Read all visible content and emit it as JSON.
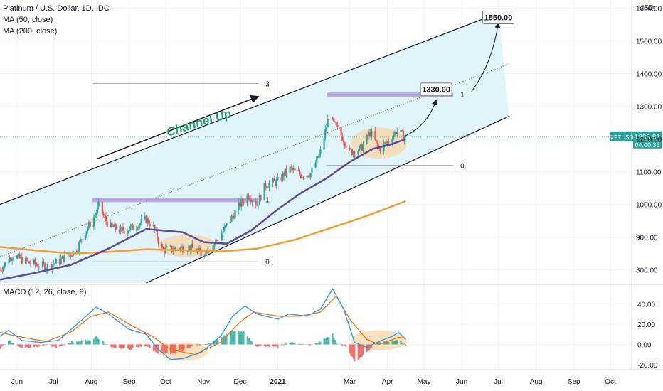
{
  "legend": {
    "symbol_line": "Platinum / U.S. Dollar, 1D, IDC",
    "ma50": "MA (50, close)",
    "ma200": "MA (200, close)",
    "macd": "MACD (12, 26, close, 9)"
  },
  "currency": "USD",
  "price_tag": {
    "symbol": "XPTUSD",
    "price": "1205.91",
    "countdown": "04:00:33"
  },
  "callouts": [
    {
      "text": "1550.00",
      "at": "2021-07-01"
    },
    {
      "text": "1330.00",
      "at": "2021-05-11"
    }
  ],
  "annotation": "Channel Up",
  "colors": {
    "up": "#26a69a",
    "down": "#ef5350",
    "ma50": "#5b4a9b",
    "ma200": "#f39c33",
    "channel_fill": "#dff3fb",
    "zone": "#b39ddb",
    "ellipse": "#f7d7a8",
    "macd_line": "#2196f3",
    "signal_line": "#ff6d00",
    "price_tag": "#26a69a"
  },
  "chart_data": [
    {
      "type": "candlestick",
      "title": "Platinum / U.S. Dollar, 1D, IDC",
      "x_ticks": [
        "Jun",
        "Jul",
        "Aug",
        "Sep",
        "Oct",
        "Nov",
        "Dec",
        "2021",
        "Mar",
        "Apr",
        "May",
        "Jun",
        "Jul",
        "Aug",
        "Sep",
        "Oct"
      ],
      "y_ticks": [
        800,
        900,
        1000,
        1100,
        1200,
        1300,
        1400,
        1500,
        1600
      ],
      "ylim": [
        760,
        1625
      ],
      "close_path": [
        [
          "2020-05-18",
          800
        ],
        [
          "2020-05-28",
          845
        ],
        [
          "2020-06-10",
          822
        ],
        [
          "2020-06-25",
          810
        ],
        [
          "2020-07-05",
          825
        ],
        [
          "2020-07-20",
          862
        ],
        [
          "2020-07-25",
          905
        ],
        [
          "2020-08-03",
          960
        ],
        [
          "2020-08-07",
          995
        ],
        [
          "2020-08-15",
          935
        ],
        [
          "2020-08-25",
          920
        ],
        [
          "2020-09-05",
          930
        ],
        [
          "2020-09-15",
          955
        ],
        [
          "2020-09-21",
          930
        ],
        [
          "2020-09-28",
          860
        ],
        [
          "2020-10-10",
          865
        ],
        [
          "2020-10-20",
          870
        ],
        [
          "2020-10-30",
          850
        ],
        [
          "2020-11-10",
          880
        ],
        [
          "2020-11-20",
          935
        ],
        [
          "2020-12-01",
          1000
        ],
        [
          "2020-12-08",
          1030
        ],
        [
          "2020-12-15",
          1000
        ],
        [
          "2020-12-22",
          1060
        ],
        [
          "2021-01-01",
          1070
        ],
        [
          "2021-01-10",
          1110
        ],
        [
          "2021-01-20",
          1090
        ],
        [
          "2021-01-28",
          1095
        ],
        [
          "2021-02-05",
          1160
        ],
        [
          "2021-02-12",
          1270
        ],
        [
          "2021-02-17",
          1240
        ],
        [
          "2021-02-24",
          1200
        ],
        [
          "2021-03-01",
          1160
        ],
        [
          "2021-03-10",
          1170
        ],
        [
          "2021-03-18",
          1220
        ],
        [
          "2021-03-25",
          1170
        ],
        [
          "2021-04-01",
          1190
        ],
        [
          "2021-04-08",
          1225
        ],
        [
          "2021-04-16",
          1205
        ]
      ],
      "ma50": [
        [
          "2020-05-18",
          770
        ],
        [
          "2020-06-15",
          790
        ],
        [
          "2020-07-15",
          815
        ],
        [
          "2020-08-15",
          865
        ],
        [
          "2020-09-15",
          925
        ],
        [
          "2020-10-15",
          915
        ],
        [
          "2020-11-01",
          885
        ],
        [
          "2020-11-20",
          880
        ],
        [
          "2020-12-10",
          920
        ],
        [
          "2021-01-01",
          985
        ],
        [
          "2021-01-20",
          1035
        ],
        [
          "2021-02-10",
          1080
        ],
        [
          "2021-03-01",
          1130
        ],
        [
          "2021-03-20",
          1170
        ],
        [
          "2021-04-05",
          1185
        ],
        [
          "2021-04-16",
          1200
        ]
      ],
      "ma200": [
        [
          "2020-05-18",
          870
        ],
        [
          "2020-06-15",
          860
        ],
        [
          "2020-07-15",
          850
        ],
        [
          "2020-08-15",
          855
        ],
        [
          "2020-09-15",
          863
        ],
        [
          "2020-10-15",
          860
        ],
        [
          "2020-11-15",
          856
        ],
        [
          "2020-12-15",
          865
        ],
        [
          "2021-01-15",
          892
        ],
        [
          "2021-02-15",
          930
        ],
        [
          "2021-03-15",
          965
        ],
        [
          "2021-04-16",
          1010
        ]
      ],
      "channel": {
        "upper": [
          [
            "2020-05-18",
            1000
          ],
          [
            "2021-07-01",
            1585
          ]
        ],
        "middle": [
          [
            "2020-05-18",
            840
          ],
          [
            "2021-07-10",
            1430
          ]
        ],
        "lower": [
          [
            "2020-09-15",
            760
          ],
          [
            "2021-07-10",
            1270
          ]
        ]
      },
      "zones": [
        {
          "from": "2020-08-02",
          "to": "2020-12-16",
          "low": 1012,
          "high": 1020,
          "label": "1"
        },
        {
          "from": "2021-02-10",
          "to": "2021-05-25",
          "low": 1335,
          "high": 1342,
          "label": "1"
        }
      ],
      "fib_levels": [
        {
          "from": "2020-08-02",
          "to": "2020-12-16",
          "value": 1015,
          "label": "1"
        },
        {
          "from": "2020-08-02",
          "to": "2020-12-16",
          "value": 825,
          "label": "0"
        },
        {
          "from": "2020-08-02",
          "to": "2020-12-16",
          "value": 1370,
          "label": "3"
        },
        {
          "from": "2021-02-10",
          "to": "2021-05-25",
          "value": 1337,
          "label": "1"
        },
        {
          "from": "2021-02-10",
          "to": "2021-05-25",
          "value": 1120,
          "label": "0"
        }
      ],
      "ellipses": [
        {
          "from": "2020-09-25",
          "to": "2020-11-12",
          "low": 838,
          "high": 908
        },
        {
          "from": "2021-03-02",
          "to": "2021-04-17",
          "low": 1140,
          "high": 1235
        }
      ],
      "projection_arrows": [
        {
          "from": [
            "2021-04-16",
            1210
          ],
          "to": [
            "2021-05-11",
            1320
          ]
        },
        {
          "from": [
            "2021-06-09",
            1345
          ],
          "to": [
            "2021-07-01",
            1555
          ]
        }
      ],
      "trend_arrow": {
        "from": [
          "2020-08-06",
          1140
        ],
        "to": [
          "2020-12-16",
          1330
        ]
      }
    },
    {
      "type": "macd",
      "title": "MACD (12, 26, close, 9)",
      "y_ticks": [
        -20,
        0,
        20,
        40
      ],
      "ylim": [
        -25,
        58
      ],
      "macd_path": [
        [
          "2020-05-18",
          8
        ],
        [
          "2020-05-25",
          14
        ],
        [
          "2020-06-05",
          4
        ],
        [
          "2020-06-20",
          2
        ],
        [
          "2020-07-05",
          4
        ],
        [
          "2020-07-25",
          25
        ],
        [
          "2020-08-05",
          37
        ],
        [
          "2020-08-15",
          30
        ],
        [
          "2020-09-01",
          15
        ],
        [
          "2020-09-15",
          10
        ],
        [
          "2020-09-25",
          -5
        ],
        [
          "2020-10-05",
          -15
        ],
        [
          "2020-10-15",
          -14
        ],
        [
          "2020-10-30",
          -8
        ],
        [
          "2020-11-15",
          8
        ],
        [
          "2020-11-25",
          28
        ],
        [
          "2020-12-05",
          38
        ],
        [
          "2020-12-15",
          30
        ],
        [
          "2021-01-01",
          25
        ],
        [
          "2021-01-10",
          30
        ],
        [
          "2021-01-25",
          28
        ],
        [
          "2021-02-05",
          35
        ],
        [
          "2021-02-15",
          55
        ],
        [
          "2021-02-24",
          35
        ],
        [
          "2021-03-05",
          2
        ],
        [
          "2021-03-15",
          -3
        ],
        [
          "2021-03-25",
          3
        ],
        [
          "2021-04-05",
          8
        ],
        [
          "2021-04-10",
          12
        ],
        [
          "2021-04-16",
          5
        ]
      ],
      "signal_path": [
        [
          "2020-05-18",
          12
        ],
        [
          "2020-05-25",
          10
        ],
        [
          "2020-06-10",
          6
        ],
        [
          "2020-06-25",
          3
        ],
        [
          "2020-07-15",
          12
        ],
        [
          "2020-08-01",
          28
        ],
        [
          "2020-08-15",
          32
        ],
        [
          "2020-09-01",
          20
        ],
        [
          "2020-09-20",
          8
        ],
        [
          "2020-10-05",
          -5
        ],
        [
          "2020-10-25",
          -10
        ],
        [
          "2020-11-15",
          2
        ],
        [
          "2020-12-01",
          22
        ],
        [
          "2020-12-12",
          32
        ],
        [
          "2021-01-01",
          28
        ],
        [
          "2021-01-20",
          28
        ],
        [
          "2021-02-05",
          32
        ],
        [
          "2021-02-18",
          48
        ],
        [
          "2021-03-01",
          25
        ],
        [
          "2021-03-15",
          5
        ],
        [
          "2021-03-25",
          0
        ],
        [
          "2021-04-10",
          7
        ],
        [
          "2021-04-16",
          6
        ]
      ]
    }
  ]
}
